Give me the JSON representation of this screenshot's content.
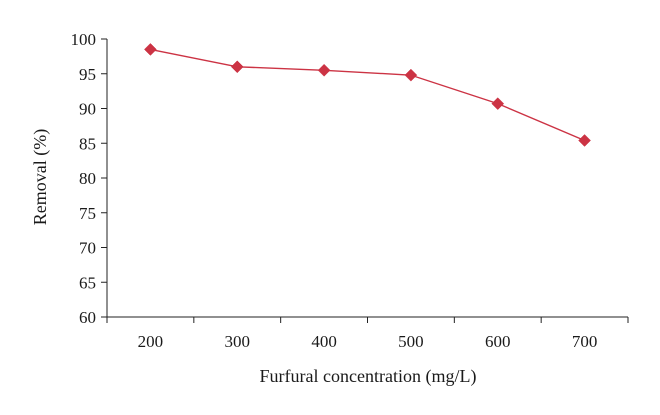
{
  "chart_data": {
    "type": "line",
    "title": "",
    "xlabel": "Furfural concentration (mg/L)",
    "ylabel": "Removal (%)",
    "categories": [
      "200",
      "300",
      "400",
      "500",
      "600",
      "700"
    ],
    "x": [
      200,
      300,
      400,
      500,
      600,
      700
    ],
    "series": [
      {
        "values": [
          98.5,
          96.0,
          95.5,
          94.8,
          90.7,
          85.4
        ],
        "color": "#cc3344",
        "marker": "diamond"
      }
    ],
    "ylim": [
      60,
      100
    ],
    "yticks": [
      "60",
      "65",
      "70",
      "75",
      "80",
      "85",
      "90",
      "95",
      "100"
    ],
    "grid": false,
    "legend": "none"
  }
}
